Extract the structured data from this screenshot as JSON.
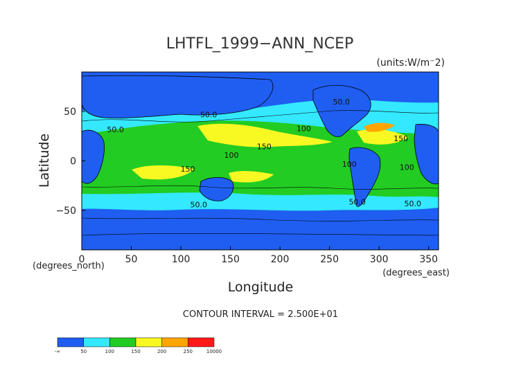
{
  "chart_data": {
    "type": "heatmap",
    "title": "LHTFL_1999−ANN_NCEP",
    "units": "(units:W/m⁻2)",
    "xlabel": "Longitude",
    "ylabel": "Latitude",
    "xlim": [
      0,
      360
    ],
    "ylim": [
      -90,
      90
    ],
    "x_ticks": [
      "0",
      "50",
      "100",
      "150",
      "200",
      "250",
      "300",
      "350"
    ],
    "y_ticks": [
      "50",
      "0",
      "−50"
    ],
    "x_unit_note": "(degrees_east)",
    "y_unit_note": "(degrees_north)",
    "contour_interval": "CONTOUR INTERVAL = 2.500E+01",
    "contour_labels": [
      {
        "text": "50.0",
        "lon": 128,
        "lat": 44
      },
      {
        "text": "50.0",
        "lon": 262,
        "lat": 57
      },
      {
        "text": "100",
        "lon": 224,
        "lat": 30
      },
      {
        "text": "150",
        "lon": 184,
        "lat": 12
      },
      {
        "text": "100",
        "lon": 151,
        "lat": 3
      },
      {
        "text": "150",
        "lon": 107,
        "lat": -11
      },
      {
        "text": "100",
        "lon": 270,
        "lat": -6
      },
      {
        "text": "100",
        "lon": 328,
        "lat": -9
      },
      {
        "text": "150",
        "lon": 322,
        "lat": 20
      },
      {
        "text": "50.0",
        "lon": 34,
        "lat": 29
      },
      {
        "text": "50.0",
        "lon": 118,
        "lat": -47
      },
      {
        "text": "50.0",
        "lon": 278,
        "lat": -44
      },
      {
        "text": "50.0",
        "lon": 334,
        "lat": -46
      }
    ],
    "colorbar": {
      "ticks": [
        "-∞",
        "50",
        "100",
        "150",
        "200",
        "250",
        "10000"
      ],
      "colors": [
        "#1f5ef0",
        "#33e8ff",
        "#22cc22",
        "#f8f822",
        "#ffa500",
        "#ff1a1a"
      ]
    },
    "field_colors": {
      "lt50": "#1f5ef0",
      "c50_100": "#33e8ff",
      "c100_150": "#22cc22",
      "c150_200": "#f8f822",
      "c200_250": "#ffa500",
      "land": "#1f5ef0"
    }
  }
}
